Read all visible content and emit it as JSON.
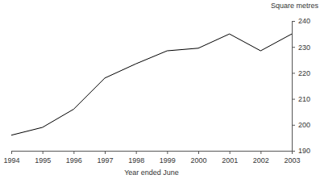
{
  "chart_data": {
    "type": "line",
    "y_label": "Square metres",
    "x_label": "Year ended June",
    "x": [
      1994,
      1995,
      1996,
      1997,
      1998,
      1999,
      2000,
      2001,
      2002,
      2003
    ],
    "values": [
      196,
      199,
      206,
      218,
      223.5,
      228.5,
      229.5,
      235,
      228.5,
      235
    ],
    "color": "#000000",
    "xlim": [
      1994,
      2003
    ],
    "xticks": [
      1994,
      1995,
      1996,
      1997,
      1998,
      1999,
      2000,
      2001,
      2002,
      2003
    ],
    "ylim": [
      190,
      240
    ],
    "yticks": [
      190,
      200,
      210,
      220,
      230,
      240
    ]
  }
}
